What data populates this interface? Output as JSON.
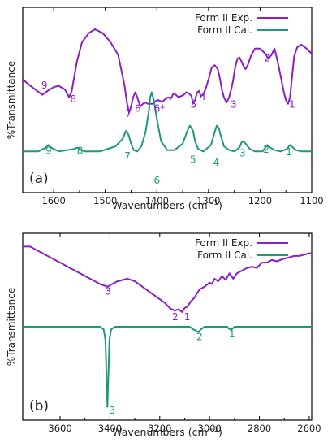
{
  "colors": {
    "exp": "#8B1FC6",
    "cal": "#1E9A78",
    "axis": "#000000",
    "text": "#222222"
  },
  "chart_data": [
    {
      "type": "line",
      "panel_label": "(a)",
      "xlabel": "Wavenumbers (cm",
      "xlabel_sup": "−1",
      "xlabel_close": ")",
      "ylabel": "%Transmittance",
      "xlim": [
        1660,
        1100
      ],
      "x_reversed": true,
      "xticks": [
        1600,
        1500,
        1400,
        1300,
        1200,
        1100
      ],
      "xtick_labels": [
        "1600",
        "1500",
        "1400",
        "1300",
        "1200",
        "1100"
      ],
      "yticks": false,
      "legend": [
        "Form II Exp.",
        "Form II Cal."
      ],
      "legend_position": "top-right",
      "series": [
        {
          "name": "Form II Exp.",
          "color": "exp",
          "x": [
            1660,
            1645,
            1632,
            1622,
            1612,
            1600,
            1590,
            1578,
            1570,
            1565,
            1555,
            1545,
            1532,
            1520,
            1505,
            1490,
            1475,
            1463,
            1458,
            1454,
            1450,
            1446,
            1442,
            1438,
            1432,
            1427,
            1422,
            1418,
            1413,
            1408,
            1403,
            1398,
            1393,
            1388,
            1383,
            1378,
            1373,
            1368,
            1363,
            1358,
            1353,
            1348,
            1343,
            1338,
            1333,
            1330,
            1326,
            1322,
            1318,
            1315,
            1311,
            1306,
            1300,
            1294,
            1288,
            1282,
            1278,
            1274,
            1270,
            1265,
            1260,
            1255,
            1252,
            1248,
            1244,
            1240,
            1236,
            1232,
            1228,
            1224,
            1218,
            1210,
            1200,
            1190,
            1184,
            1178,
            1172,
            1166,
            1160,
            1154,
            1150,
            1146,
            1142,
            1138,
            1134,
            1128,
            1120,
            1110,
            1100
          ],
          "y": [
            0.74,
            0.79,
            0.83,
            0.86,
            0.83,
            0.8,
            0.79,
            0.82,
            0.88,
            0.83,
            0.6,
            0.45,
            0.38,
            0.35,
            0.38,
            0.45,
            0.55,
            0.78,
            0.92,
            1.0,
            0.95,
            0.88,
            0.84,
            0.88,
            0.95,
            0.93,
            0.92,
            0.93,
            0.93,
            0.93,
            0.91,
            0.9,
            0.91,
            0.91,
            0.89,
            0.88,
            0.89,
            0.85,
            0.86,
            0.88,
            0.87,
            0.86,
            0.84,
            0.85,
            0.87,
            0.93,
            0.9,
            0.84,
            0.83,
            0.87,
            0.86,
            0.82,
            0.74,
            0.65,
            0.63,
            0.66,
            0.73,
            0.82,
            0.88,
            0.92,
            0.88,
            0.8,
            0.74,
            0.64,
            0.58,
            0.57,
            0.6,
            0.64,
            0.66,
            0.63,
            0.56,
            0.5,
            0.5,
            0.54,
            0.58,
            0.55,
            0.5,
            0.6,
            0.72,
            0.84,
            0.9,
            0.93,
            0.88,
            0.72,
            0.56,
            0.49,
            0.47,
            0.5,
            0.54
          ]
        },
        {
          "name": "Form II Cal.",
          "color": "cal",
          "x": [
            1660,
            1630,
            1615,
            1610,
            1605,
            1590,
            1560,
            1555,
            1550,
            1540,
            1510,
            1480,
            1466,
            1460,
            1455,
            1450,
            1445,
            1438,
            1430,
            1422,
            1416,
            1413,
            1410,
            1406,
            1400,
            1392,
            1380,
            1366,
            1350,
            1340,
            1336,
            1330,
            1326,
            1320,
            1310,
            1295,
            1288,
            1284,
            1280,
            1276,
            1270,
            1260,
            1250,
            1240,
            1236,
            1232,
            1228,
            1220,
            1210,
            1195,
            1190,
            1186,
            1180,
            1172,
            1160,
            1148,
            1142,
            1136,
            1130,
            1120,
            1100
          ],
          "y": [
            1.3,
            1.3,
            1.27,
            1.25,
            1.27,
            1.3,
            1.28,
            1.27,
            1.28,
            1.3,
            1.3,
            1.26,
            1.2,
            1.14,
            1.17,
            1.24,
            1.29,
            1.3,
            1.26,
            1.15,
            1.0,
            0.88,
            0.84,
            0.9,
            1.05,
            1.22,
            1.29,
            1.29,
            1.24,
            1.13,
            1.1,
            1.14,
            1.22,
            1.28,
            1.3,
            1.25,
            1.15,
            1.1,
            1.12,
            1.18,
            1.26,
            1.29,
            1.3,
            1.27,
            1.23,
            1.22,
            1.24,
            1.28,
            1.3,
            1.3,
            1.27,
            1.25,
            1.27,
            1.29,
            1.3,
            1.28,
            1.25,
            1.27,
            1.29,
            1.3,
            1.3
          ]
        }
      ],
      "annotations": [
        {
          "text": "9",
          "x": 1618,
          "y": 0.81,
          "color": "exp"
        },
        {
          "text": "8",
          "x": 1562,
          "y": 0.92,
          "color": "exp"
        },
        {
          "text": "7",
          "x": 1455,
          "y": 1.03,
          "color": "exp"
        },
        {
          "text": "6",
          "x": 1437,
          "y": 0.99,
          "color": "exp"
        },
        {
          "text": "6*",
          "x": 1395,
          "y": 0.99,
          "color": "exp"
        },
        {
          "text": "5",
          "x": 1329,
          "y": 0.96,
          "color": "exp"
        },
        {
          "text": "4",
          "x": 1311,
          "y": 0.9,
          "color": "exp"
        },
        {
          "text": "3",
          "x": 1251,
          "y": 0.96,
          "color": "exp"
        },
        {
          "text": "2",
          "x": 1186,
          "y": 0.6,
          "color": "exp"
        },
        {
          "text": "1",
          "x": 1138,
          "y": 0.96,
          "color": "exp"
        },
        {
          "text": "9",
          "x": 1610,
          "y": 1.32,
          "color": "cal"
        },
        {
          "text": "8",
          "x": 1549,
          "y": 1.32,
          "color": "cal"
        },
        {
          "text": "7",
          "x": 1457,
          "y": 1.36,
          "color": "cal"
        },
        {
          "text": "6",
          "x": 1400,
          "y": 1.55,
          "color": "cal"
        },
        {
          "text": "5",
          "x": 1330,
          "y": 1.39,
          "color": "cal"
        },
        {
          "text": "4",
          "x": 1285,
          "y": 1.41,
          "color": "cal"
        },
        {
          "text": "3",
          "x": 1234,
          "y": 1.34,
          "color": "cal"
        },
        {
          "text": "2",
          "x": 1188,
          "y": 1.31,
          "color": "cal"
        },
        {
          "text": "1",
          "x": 1144,
          "y": 1.33,
          "color": "cal"
        }
      ]
    },
    {
      "type": "line",
      "panel_label": "(b)",
      "xlabel": "Wavenumbers (cm",
      "xlabel_sup": "−1",
      "xlabel_close": ")",
      "ylabel": "%Transmittance",
      "xlim": [
        3750,
        2590
      ],
      "x_reversed": true,
      "xticks": [
        3600,
        3400,
        3200,
        3000,
        2800,
        2600
      ],
      "xtick_labels": [
        "3600",
        "3400",
        "3200",
        "3000",
        "2800",
        "2600"
      ],
      "yticks": false,
      "legend": [
        "Form II Exp.",
        "Form II Cal."
      ],
      "legend_position": "top-right",
      "series": [
        {
          "name": "Form II Exp.",
          "color": "exp",
          "x": [
            3750,
            3720,
            3680,
            3640,
            3600,
            3560,
            3520,
            3480,
            3440,
            3410,
            3390,
            3370,
            3350,
            3330,
            3300,
            3270,
            3240,
            3210,
            3180,
            3160,
            3140,
            3125,
            3110,
            3100,
            3090,
            3075,
            3060,
            3050,
            3040,
            3020,
            3000,
            2990,
            2980,
            2965,
            2950,
            2935,
            2920,
            2905,
            2890,
            2870,
            2850,
            2830,
            2810,
            2790,
            2770,
            2750,
            2730,
            2700,
            2680,
            2660,
            2640,
            2620,
            2600,
            2590
          ],
          "y": [
            0.1,
            0.1,
            0.14,
            0.18,
            0.22,
            0.26,
            0.3,
            0.34,
            0.38,
            0.4,
            0.38,
            0.36,
            0.35,
            0.34,
            0.36,
            0.4,
            0.44,
            0.48,
            0.52,
            0.56,
            0.58,
            0.57,
            0.59,
            0.56,
            0.55,
            0.51,
            0.48,
            0.45,
            0.42,
            0.4,
            0.37,
            0.38,
            0.34,
            0.36,
            0.32,
            0.35,
            0.3,
            0.34,
            0.3,
            0.28,
            0.26,
            0.25,
            0.26,
            0.22,
            0.22,
            0.2,
            0.21,
            0.19,
            0.18,
            0.17,
            0.17,
            0.16,
            0.15,
            0.15
          ]
        },
        {
          "name": "Form II Cal.",
          "color": "cal",
          "x": [
            3750,
            3440,
            3425,
            3418,
            3414,
            3410,
            3406,
            3402,
            3395,
            3380,
            3080,
            3065,
            3055,
            3045,
            3035,
            3020,
            2930,
            2922,
            2915,
            2908,
            2900,
            2590
          ],
          "y": [
            0.7,
            0.7,
            0.72,
            0.8,
            1.05,
            1.3,
            1.05,
            0.8,
            0.72,
            0.7,
            0.7,
            0.72,
            0.73,
            0.74,
            0.72,
            0.7,
            0.7,
            0.715,
            0.72,
            0.715,
            0.7,
            0.7
          ]
        }
      ],
      "annotations": [
        {
          "text": "3",
          "x": 3407,
          "y": 0.46,
          "color": "exp"
        },
        {
          "text": "2",
          "x": 3138,
          "y": 0.65,
          "color": "exp"
        },
        {
          "text": "1",
          "x": 3090,
          "y": 0.65,
          "color": "exp"
        },
        {
          "text": "2",
          "x": 3040,
          "y": 0.8,
          "color": "cal"
        },
        {
          "text": "1",
          "x": 2910,
          "y": 0.78,
          "color": "cal"
        },
        {
          "text": "3",
          "x": 3390,
          "y": 1.35,
          "color": "cal"
        }
      ]
    }
  ]
}
